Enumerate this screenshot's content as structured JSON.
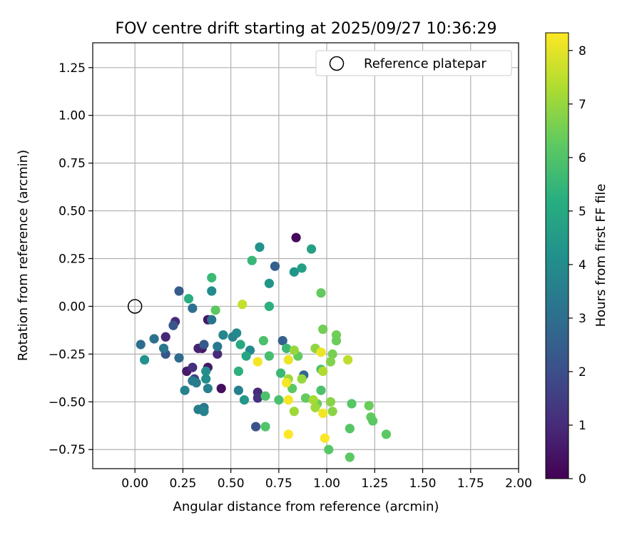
{
  "chart_data": {
    "type": "scatter",
    "title": "FOV centre drift starting at 2025/09/27 10:36:29",
    "xlabel": "Angular distance from reference (arcmin)",
    "ylabel": "Rotation from reference (arcmin)",
    "xlim": [
      -0.22,
      2.0
    ],
    "ylim": [
      -0.85,
      1.38
    ],
    "xticks": [
      "0.00",
      "0.25",
      "0.50",
      "0.75",
      "1.00",
      "1.25",
      "1.50",
      "1.75",
      "2.00"
    ],
    "yticks": [
      "−0.75",
      "−0.50",
      "−0.25",
      "0.00",
      "0.25",
      "0.50",
      "0.75",
      "1.00",
      "1.25"
    ],
    "grid": true,
    "legend": {
      "placement": "top-right",
      "label": "Reference platepar",
      "marker": "open-circle"
    },
    "reference_point": {
      "x": 0.0,
      "y": 0.0
    },
    "colorbar": {
      "label": "Hours from first FF file",
      "colormap": "viridis",
      "range": [
        0,
        8.33
      ],
      "ticks": [
        "0",
        "1",
        "2",
        "3",
        "4",
        "5",
        "6",
        "7",
        "8"
      ]
    },
    "points": [
      {
        "x": 0.84,
        "y": 0.36,
        "h": 0.2
      },
      {
        "x": 0.38,
        "y": -0.07,
        "h": 0.5
      },
      {
        "x": 0.35,
        "y": -0.22,
        "h": 0.4
      },
      {
        "x": 0.45,
        "y": -0.43,
        "h": 0.3
      },
      {
        "x": 0.27,
        "y": -0.34,
        "h": 0.6
      },
      {
        "x": 0.38,
        "y": -0.32,
        "h": 0.5
      },
      {
        "x": 0.16,
        "y": -0.16,
        "h": 0.9
      },
      {
        "x": 0.21,
        "y": -0.08,
        "h": 1.0
      },
      {
        "x": 0.33,
        "y": -0.22,
        "h": 0.8
      },
      {
        "x": 0.64,
        "y": -0.45,
        "h": 1.0
      },
      {
        "x": 0.64,
        "y": -0.48,
        "h": 1.2
      },
      {
        "x": 0.43,
        "y": -0.25,
        "h": 1.0
      },
      {
        "x": 0.3,
        "y": -0.32,
        "h": 1.1
      },
      {
        "x": 0.31,
        "y": -0.38,
        "h": 1.6
      },
      {
        "x": 0.63,
        "y": -0.63,
        "h": 2.1
      },
      {
        "x": 0.16,
        "y": -0.25,
        "h": 2.2
      },
      {
        "x": 0.2,
        "y": -0.1,
        "h": 2.2
      },
      {
        "x": 0.36,
        "y": -0.2,
        "h": 2.3
      },
      {
        "x": 0.23,
        "y": 0.08,
        "h": 2.4
      },
      {
        "x": 0.73,
        "y": 0.21,
        "h": 2.5
      },
      {
        "x": 0.77,
        "y": -0.18,
        "h": 2.6
      },
      {
        "x": 0.88,
        "y": -0.36,
        "h": 2.8
      },
      {
        "x": 0.23,
        "y": -0.27,
        "h": 2.9
      },
      {
        "x": 0.03,
        "y": -0.2,
        "h": 3.0
      },
      {
        "x": 0.1,
        "y": -0.17,
        "h": 3.1
      },
      {
        "x": 0.3,
        "y": -0.01,
        "h": 3.1
      },
      {
        "x": 0.4,
        "y": -0.07,
        "h": 3.2
      },
      {
        "x": 0.43,
        "y": -0.21,
        "h": 3.3
      },
      {
        "x": 0.15,
        "y": -0.22,
        "h": 3.3
      },
      {
        "x": 0.36,
        "y": -0.53,
        "h": 3.3
      },
      {
        "x": 0.3,
        "y": -0.39,
        "h": 3.4
      },
      {
        "x": 0.32,
        "y": -0.4,
        "h": 3.5
      },
      {
        "x": 0.33,
        "y": -0.54,
        "h": 3.5
      },
      {
        "x": 0.38,
        "y": -0.43,
        "h": 3.6
      },
      {
        "x": 0.26,
        "y": -0.44,
        "h": 3.7
      },
      {
        "x": 0.36,
        "y": -0.55,
        "h": 3.7
      },
      {
        "x": 0.54,
        "y": -0.44,
        "h": 3.6
      },
      {
        "x": 0.51,
        "y": -0.16,
        "h": 3.7
      },
      {
        "x": 0.46,
        "y": -0.15,
        "h": 3.8
      },
      {
        "x": 0.6,
        "y": -0.23,
        "h": 3.9
      },
      {
        "x": 0.53,
        "y": -0.14,
        "h": 3.9
      },
      {
        "x": 0.4,
        "y": 0.08,
        "h": 4.0
      },
      {
        "x": 0.37,
        "y": -0.38,
        "h": 4.0
      },
      {
        "x": 0.37,
        "y": -0.34,
        "h": 4.1
      },
      {
        "x": 0.05,
        "y": -0.28,
        "h": 4.2
      },
      {
        "x": 0.65,
        "y": 0.31,
        "h": 4.2
      },
      {
        "x": 0.83,
        "y": 0.18,
        "h": 4.3
      },
      {
        "x": 0.7,
        "y": 0.12,
        "h": 4.3
      },
      {
        "x": 0.57,
        "y": -0.49,
        "h": 4.4
      },
      {
        "x": 0.92,
        "y": 0.3,
        "h": 4.7
      },
      {
        "x": 0.87,
        "y": 0.2,
        "h": 4.7
      },
      {
        "x": 0.58,
        "y": -0.26,
        "h": 4.9
      },
      {
        "x": 0.55,
        "y": -0.2,
        "h": 5.0
      },
      {
        "x": 0.28,
        "y": 0.04,
        "h": 5.2
      },
      {
        "x": 0.54,
        "y": -0.34,
        "h": 5.3
      },
      {
        "x": 0.7,
        "y": 0.0,
        "h": 5.3
      },
      {
        "x": 0.61,
        "y": 0.24,
        "h": 5.5
      },
      {
        "x": 0.4,
        "y": 0.15,
        "h": 5.6
      },
      {
        "x": 0.79,
        "y": -0.22,
        "h": 5.6
      },
      {
        "x": 0.76,
        "y": -0.35,
        "h": 5.6
      },
      {
        "x": 0.7,
        "y": -0.26,
        "h": 5.8
      },
      {
        "x": 0.67,
        "y": -0.18,
        "h": 5.9
      },
      {
        "x": 0.68,
        "y": -0.47,
        "h": 5.9
      },
      {
        "x": 0.75,
        "y": -0.49,
        "h": 5.9
      },
      {
        "x": 0.68,
        "y": -0.63,
        "h": 6.0
      },
      {
        "x": 0.97,
        "y": -0.44,
        "h": 5.9
      },
      {
        "x": 0.97,
        "y": -0.33,
        "h": 5.9
      },
      {
        "x": 0.42,
        "y": -0.02,
        "h": 6.2
      },
      {
        "x": 0.85,
        "y": -0.26,
        "h": 6.3
      },
      {
        "x": 0.82,
        "y": -0.43,
        "h": 6.2
      },
      {
        "x": 0.89,
        "y": -0.48,
        "h": 6.3
      },
      {
        "x": 0.95,
        "y": -0.51,
        "h": 6.4
      },
      {
        "x": 1.01,
        "y": -0.75,
        "h": 6.1
      },
      {
        "x": 1.12,
        "y": -0.64,
        "h": 6.1
      },
      {
        "x": 1.12,
        "y": -0.79,
        "h": 6.2
      },
      {
        "x": 1.13,
        "y": -0.51,
        "h": 6.1
      },
      {
        "x": 1.22,
        "y": -0.52,
        "h": 6.4
      },
      {
        "x": 1.23,
        "y": -0.58,
        "h": 6.3
      },
      {
        "x": 1.24,
        "y": -0.6,
        "h": 6.2
      },
      {
        "x": 1.31,
        "y": -0.67,
        "h": 6.2
      },
      {
        "x": 0.97,
        "y": 0.07,
        "h": 6.3
      },
      {
        "x": 0.98,
        "y": -0.12,
        "h": 6.5
      },
      {
        "x": 1.05,
        "y": -0.15,
        "h": 6.5
      },
      {
        "x": 1.05,
        "y": -0.18,
        "h": 6.4
      },
      {
        "x": 1.03,
        "y": -0.25,
        "h": 6.6
      },
      {
        "x": 1.02,
        "y": -0.29,
        "h": 6.7
      },
      {
        "x": 1.02,
        "y": -0.5,
        "h": 6.8
      },
      {
        "x": 1.03,
        "y": -0.55,
        "h": 6.8
      },
      {
        "x": 0.94,
        "y": -0.22,
        "h": 6.9
      },
      {
        "x": 0.83,
        "y": -0.23,
        "h": 7.0
      },
      {
        "x": 0.87,
        "y": -0.38,
        "h": 7.0
      },
      {
        "x": 0.8,
        "y": -0.38,
        "h": 7.1
      },
      {
        "x": 0.83,
        "y": -0.55,
        "h": 7.1
      },
      {
        "x": 0.93,
        "y": -0.49,
        "h": 7.2
      },
      {
        "x": 0.94,
        "y": -0.53,
        "h": 7.1
      },
      {
        "x": 0.98,
        "y": -0.34,
        "h": 7.3
      },
      {
        "x": 1.11,
        "y": -0.28,
        "h": 7.5
      },
      {
        "x": 0.56,
        "y": 0.01,
        "h": 7.6
      },
      {
        "x": 0.64,
        "y": -0.29,
        "h": 8.2
      },
      {
        "x": 0.8,
        "y": -0.28,
        "h": 8.1
      },
      {
        "x": 0.79,
        "y": -0.4,
        "h": 8.2
      },
      {
        "x": 0.8,
        "y": -0.49,
        "h": 8.2
      },
      {
        "x": 0.8,
        "y": -0.67,
        "h": 8.3
      },
      {
        "x": 0.97,
        "y": -0.24,
        "h": 8.1
      },
      {
        "x": 0.98,
        "y": -0.56,
        "h": 8.2
      },
      {
        "x": 0.99,
        "y": -0.69,
        "h": 8.3
      }
    ]
  }
}
